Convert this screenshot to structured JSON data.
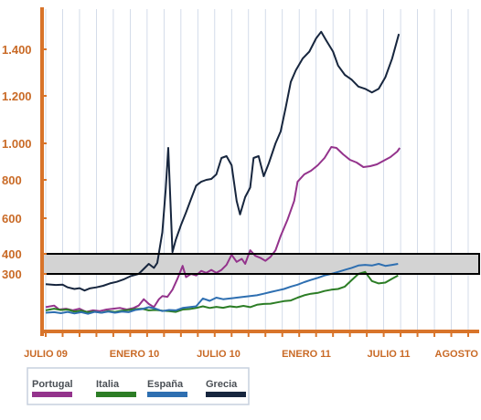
{
  "chart_data": {
    "type": "line",
    "title": "",
    "xlabel": "",
    "ylabel": "",
    "x_ticks": [
      "JULIO 09",
      "ENERO 10",
      "JULIO 10",
      "ENERO 11",
      "JULIO 11",
      "AGOSTO"
    ],
    "y_ticks": [
      "300",
      "400",
      "600",
      "800",
      "1.000",
      "1.200",
      "1.400"
    ],
    "grid": "vertical",
    "highlight_band": [
      300,
      400
    ],
    "legend_position": "bottom-left",
    "colors": {
      "axis": "#d8742a",
      "grid": "#c9d3e4",
      "band_fill": "#d3d3d3",
      "band_stroke": "#000000"
    },
    "series": [
      {
        "name": "Grecia",
        "color": "#17263e",
        "points": [
          [
            0.0,
            235
          ],
          [
            0.6,
            230
          ],
          [
            1.0,
            232
          ],
          [
            1.3,
            215
          ],
          [
            1.7,
            205
          ],
          [
            2.0,
            210
          ],
          [
            2.3,
            195
          ],
          [
            2.6,
            208
          ],
          [
            3.0,
            215
          ],
          [
            3.4,
            225
          ],
          [
            3.8,
            240
          ],
          [
            4.2,
            250
          ],
          [
            4.6,
            265
          ],
          [
            5.0,
            285
          ],
          [
            5.5,
            300
          ],
          [
            5.8,
            325
          ],
          [
            6.1,
            350
          ],
          [
            6.4,
            330
          ],
          [
            6.6,
            355
          ],
          [
            6.9,
            520
          ],
          [
            7.1,
            750
          ],
          [
            7.25,
            975
          ],
          [
            7.5,
            410
          ],
          [
            7.7,
            480
          ],
          [
            8.0,
            560
          ],
          [
            8.3,
            630
          ],
          [
            8.6,
            700
          ],
          [
            8.9,
            770
          ],
          [
            9.2,
            790
          ],
          [
            9.5,
            800
          ],
          [
            9.8,
            805
          ],
          [
            10.1,
            830
          ],
          [
            10.4,
            920
          ],
          [
            10.7,
            930
          ],
          [
            11.0,
            880
          ],
          [
            11.3,
            690
          ],
          [
            11.5,
            620
          ],
          [
            11.8,
            710
          ],
          [
            12.1,
            760
          ],
          [
            12.3,
            920
          ],
          [
            12.6,
            930
          ],
          [
            12.9,
            820
          ],
          [
            13.2,
            890
          ],
          [
            13.6,
            1000
          ],
          [
            13.9,
            1050
          ],
          [
            14.2,
            1150
          ],
          [
            14.5,
            1260
          ],
          [
            14.8,
            1310
          ],
          [
            15.2,
            1360
          ],
          [
            15.6,
            1390
          ],
          [
            16.0,
            1450
          ],
          [
            16.3,
            1480
          ],
          [
            16.6,
            1440
          ],
          [
            17.0,
            1390
          ],
          [
            17.3,
            1330
          ],
          [
            17.7,
            1290
          ],
          [
            18.1,
            1270
          ],
          [
            18.5,
            1240
          ],
          [
            18.9,
            1230
          ],
          [
            19.3,
            1215
          ],
          [
            19.7,
            1230
          ],
          [
            20.1,
            1280
          ],
          [
            20.5,
            1360
          ],
          [
            20.9,
            1470
          ]
        ]
      },
      {
        "name": "Portugal",
        "color": "#94338c",
        "points": [
          [
            0.0,
            90
          ],
          [
            0.5,
            100
          ],
          [
            0.8,
            75
          ],
          [
            1.2,
            80
          ],
          [
            1.6,
            70
          ],
          [
            2.0,
            80
          ],
          [
            2.4,
            60
          ],
          [
            2.8,
            70
          ],
          [
            3.2,
            65
          ],
          [
            3.6,
            75
          ],
          [
            4.0,
            80
          ],
          [
            4.4,
            85
          ],
          [
            4.8,
            75
          ],
          [
            5.2,
            85
          ],
          [
            5.5,
            100
          ],
          [
            5.8,
            140
          ],
          [
            6.1,
            110
          ],
          [
            6.4,
            90
          ],
          [
            6.7,
            140
          ],
          [
            6.9,
            160
          ],
          [
            7.2,
            155
          ],
          [
            7.5,
            200
          ],
          [
            7.8,
            270
          ],
          [
            8.1,
            340
          ],
          [
            8.3,
            280
          ],
          [
            8.6,
            300
          ],
          [
            8.9,
            290
          ],
          [
            9.2,
            315
          ],
          [
            9.5,
            305
          ],
          [
            9.8,
            320
          ],
          [
            10.1,
            305
          ],
          [
            10.4,
            320
          ],
          [
            10.7,
            345
          ],
          [
            11.0,
            395
          ],
          [
            11.3,
            360
          ],
          [
            11.6,
            375
          ],
          [
            11.8,
            350
          ],
          [
            12.1,
            420
          ],
          [
            12.4,
            390
          ],
          [
            12.7,
            380
          ],
          [
            13.0,
            365
          ],
          [
            13.3,
            385
          ],
          [
            13.6,
            420
          ],
          [
            13.9,
            500
          ],
          [
            14.3,
            590
          ],
          [
            14.7,
            690
          ],
          [
            14.9,
            790
          ],
          [
            15.3,
            830
          ],
          [
            15.7,
            850
          ],
          [
            16.1,
            880
          ],
          [
            16.5,
            920
          ],
          [
            16.9,
            980
          ],
          [
            17.2,
            975
          ],
          [
            17.6,
            940
          ],
          [
            18.0,
            910
          ],
          [
            18.4,
            895
          ],
          [
            18.8,
            870
          ],
          [
            19.2,
            875
          ],
          [
            19.6,
            885
          ],
          [
            20.0,
            905
          ],
          [
            20.4,
            925
          ],
          [
            20.8,
            955
          ],
          [
            20.95,
            975
          ]
        ]
      },
      {
        "name": "Italia",
        "color": "#2c7d25",
        "points": [
          [
            0.0,
            70
          ],
          [
            0.5,
            80
          ],
          [
            0.9,
            72
          ],
          [
            1.3,
            75
          ],
          [
            1.7,
            62
          ],
          [
            2.1,
            68
          ],
          [
            2.5,
            58
          ],
          [
            2.9,
            62
          ],
          [
            3.3,
            55
          ],
          [
            3.7,
            65
          ],
          [
            4.1,
            60
          ],
          [
            4.5,
            68
          ],
          [
            4.9,
            72
          ],
          [
            5.3,
            78
          ],
          [
            5.7,
            80
          ],
          [
            6.1,
            70
          ],
          [
            6.5,
            72
          ],
          [
            6.9,
            68
          ],
          [
            7.3,
            65
          ],
          [
            7.7,
            60
          ],
          [
            8.1,
            75
          ],
          [
            8.5,
            78
          ],
          [
            8.9,
            85
          ],
          [
            9.3,
            95
          ],
          [
            9.7,
            85
          ],
          [
            10.1,
            92
          ],
          [
            10.5,
            86
          ],
          [
            10.9,
            95
          ],
          [
            11.3,
            90
          ],
          [
            11.7,
            98
          ],
          [
            12.1,
            90
          ],
          [
            12.5,
            105
          ],
          [
            12.9,
            110
          ],
          [
            13.3,
            112
          ],
          [
            13.7,
            120
          ],
          [
            14.1,
            128
          ],
          [
            14.5,
            132
          ],
          [
            14.9,
            150
          ],
          [
            15.3,
            165
          ],
          [
            15.7,
            175
          ],
          [
            16.1,
            180
          ],
          [
            16.5,
            192
          ],
          [
            16.9,
            200
          ],
          [
            17.3,
            205
          ],
          [
            17.7,
            220
          ],
          [
            18.1,
            260
          ],
          [
            18.5,
            300
          ],
          [
            18.9,
            310
          ],
          [
            19.3,
            255
          ],
          [
            19.7,
            240
          ],
          [
            20.1,
            245
          ],
          [
            20.5,
            270
          ],
          [
            20.85,
            290
          ]
        ]
      },
      {
        "name": "España",
        "color": "#2e6fb1",
        "points": [
          [
            0.0,
            55
          ],
          [
            0.5,
            58
          ],
          [
            0.9,
            52
          ],
          [
            1.3,
            60
          ],
          [
            1.7,
            50
          ],
          [
            2.1,
            58
          ],
          [
            2.5,
            48
          ],
          [
            2.9,
            60
          ],
          [
            3.3,
            55
          ],
          [
            3.7,
            62
          ],
          [
            4.1,
            55
          ],
          [
            4.5,
            62
          ],
          [
            4.9,
            58
          ],
          [
            5.3,
            72
          ],
          [
            5.7,
            78
          ],
          [
            6.1,
            90
          ],
          [
            6.5,
            80
          ],
          [
            6.9,
            65
          ],
          [
            7.3,
            72
          ],
          [
            7.7,
            70
          ],
          [
            8.1,
            85
          ],
          [
            8.5,
            90
          ],
          [
            8.9,
            95
          ],
          [
            9.3,
            145
          ],
          [
            9.7,
            130
          ],
          [
            10.1,
            150
          ],
          [
            10.5,
            140
          ],
          [
            10.9,
            145
          ],
          [
            11.3,
            150
          ],
          [
            11.7,
            155
          ],
          [
            12.1,
            160
          ],
          [
            12.5,
            165
          ],
          [
            12.9,
            175
          ],
          [
            13.3,
            185
          ],
          [
            13.7,
            195
          ],
          [
            14.1,
            205
          ],
          [
            14.5,
            220
          ],
          [
            14.9,
            232
          ],
          [
            15.3,
            248
          ],
          [
            15.7,
            262
          ],
          [
            16.1,
            275
          ],
          [
            16.5,
            290
          ],
          [
            16.9,
            300
          ],
          [
            17.3,
            310
          ],
          [
            17.7,
            320
          ],
          [
            18.1,
            330
          ],
          [
            18.5,
            342
          ],
          [
            18.9,
            345
          ],
          [
            19.3,
            342
          ],
          [
            19.7,
            350
          ],
          [
            20.1,
            340
          ],
          [
            20.5,
            345
          ],
          [
            20.85,
            350
          ]
        ]
      }
    ]
  }
}
